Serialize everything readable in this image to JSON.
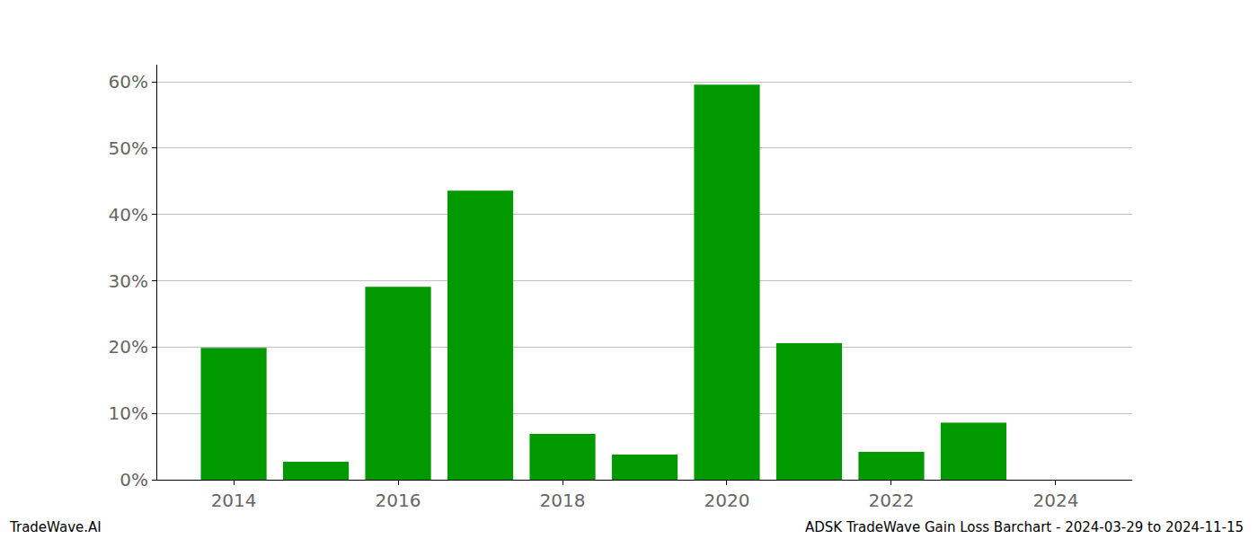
{
  "chart_data": {
    "type": "bar",
    "x": [
      2014,
      2015,
      2016,
      2017,
      2018,
      2019,
      2020,
      2021,
      2022,
      2023
    ],
    "values": [
      19.9,
      2.7,
      29.1,
      43.6,
      6.9,
      3.8,
      59.6,
      20.6,
      4.2,
      8.6
    ],
    "color": "#009900",
    "xlim": [
      2013.07,
      2024.93
    ],
    "xticks": [
      2014,
      2016,
      2018,
      2020,
      2022,
      2024
    ],
    "ylim": [
      0,
      62.6
    ],
    "yticks": [
      {
        "value": 0,
        "label": "0%"
      },
      {
        "value": 10,
        "label": "10%"
      },
      {
        "value": 20,
        "label": "20%"
      },
      {
        "value": 30,
        "label": "30%"
      },
      {
        "value": 40,
        "label": "40%"
      },
      {
        "value": 50,
        "label": "50%"
      },
      {
        "value": 60,
        "label": "60%"
      }
    ],
    "grid": true,
    "annotations": [
      "TradeWave.AI",
      "ADSK TradeWave Gain Loss Barchart - 2024-03-29 to 2024-11-15"
    ]
  }
}
